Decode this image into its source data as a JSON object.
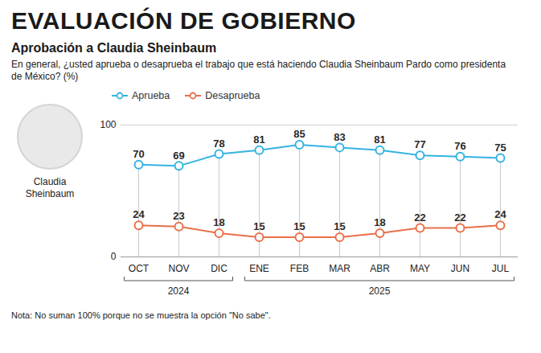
{
  "chart_data": {
    "type": "line",
    "title": "EVALUACIÓN DE GOBIERNO",
    "subtitle": "Aprobación a Claudia Sheinbaum",
    "description": "En general, ¿usted aprueba o desaprueba el trabajo que está haciendo Claudia Sheinbaum Pardo como presidenta de México? (%)",
    "photo_caption": "Claudia Sheinbaum",
    "note": "Nota: No suman 100% porque no se muestra la opción \"No sabe\".",
    "categories": [
      "OCT",
      "NOV",
      "DIC",
      "ENE",
      "FEB",
      "MAR",
      "ABR",
      "MAY",
      "JUN",
      "JUL"
    ],
    "x_groups": [
      {
        "label": "2024",
        "count": 3
      },
      {
        "label": "2025",
        "count": 7
      }
    ],
    "series": [
      {
        "name": "Aprueba",
        "color": "#35b3e2",
        "values": [
          70,
          69,
          78,
          81,
          85,
          83,
          81,
          77,
          76,
          75
        ]
      },
      {
        "name": "Desaprueba",
        "color": "#e8704b",
        "values": [
          24,
          23,
          18,
          15,
          15,
          15,
          18,
          22,
          22,
          24
        ]
      }
    ],
    "ylim": [
      0,
      100
    ],
    "yticks": [
      0,
      100
    ],
    "grid": true,
    "legend": "top",
    "marker": "circle",
    "data_labels": true
  }
}
